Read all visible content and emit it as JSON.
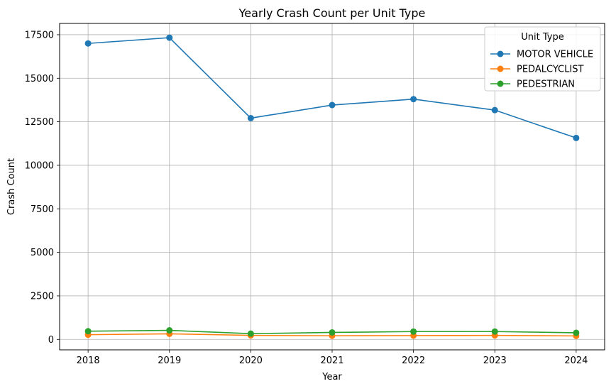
{
  "chart_data": {
    "type": "line",
    "title": "Yearly Crash Count per Unit Type",
    "xlabel": "Year",
    "ylabel": "Crash Count",
    "x": [
      2018,
      2019,
      2020,
      2021,
      2022,
      2023,
      2024
    ],
    "xticks": [
      "2018",
      "2019",
      "2020",
      "2021",
      "2022",
      "2023",
      "2024"
    ],
    "yticks": [
      "0",
      "2500",
      "5000",
      "7500",
      "10000",
      "12500",
      "15000",
      "17500"
    ],
    "ylim": [
      -600,
      18150
    ],
    "xlim": [
      2017.65,
      2024.35
    ],
    "grid": true,
    "legend": {
      "title": "Unit Type",
      "placement": "top-right"
    },
    "series": [
      {
        "name": "MOTOR VEHICLE",
        "color": "#1f77b4",
        "values": [
          17000,
          17330,
          12710,
          13460,
          13800,
          13170,
          11570
        ]
      },
      {
        "name": "PEDALCYCLIST",
        "color": "#ff7f0e",
        "values": [
          270,
          320,
          230,
          210,
          220,
          230,
          200
        ]
      },
      {
        "name": "PEDESTRIAN",
        "color": "#2ca02c",
        "values": [
          470,
          520,
          330,
          400,
          450,
          450,
          380
        ]
      }
    ]
  }
}
